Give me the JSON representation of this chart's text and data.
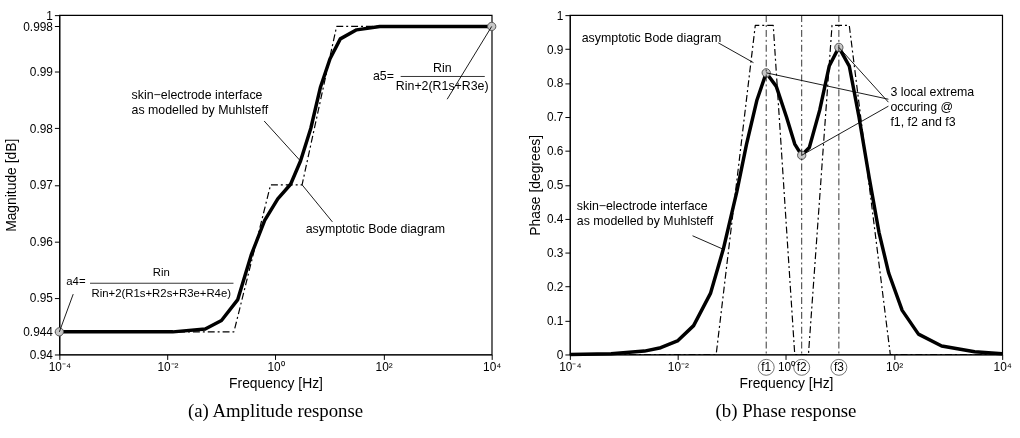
{
  "chart_data": [
    {
      "type": "line",
      "title": "(a)  Amplitude response",
      "xlabel": "Frequency [Hz]",
      "ylabel": "Magnitude [dB]",
      "log": "x",
      "grid": false,
      "xlim": [
        0.0001,
        10000
      ],
      "xticks": [
        {
          "value": 0.0001,
          "label": "10⁻⁴"
        },
        {
          "value": 0.01,
          "label": "10⁻²"
        },
        {
          "value": 1,
          "label": "10⁰"
        },
        {
          "value": 100,
          "label": "10²"
        },
        {
          "value": 10000,
          "label": "10⁴"
        }
      ],
      "ylim": [
        0.94,
        1
      ],
      "yticks": [
        0.94,
        0.944,
        0.95,
        0.96,
        0.97,
        0.98,
        0.99,
        0.998,
        1
      ],
      "series": [
        {
          "line_style": "dashed",
          "color": "#000000",
          "x": [
            0.0001,
            0.17,
            0.81,
            3.1,
            13.5,
            10000
          ],
          "values": [
            0.944,
            0.944,
            0.97,
            0.97,
            0.998,
            0.998
          ]
        },
        {
          "line_style": "solid",
          "color": "#000000",
          "x": [
            0.0001,
            0.001,
            0.0126,
            0.05,
            0.1,
            0.2,
            0.355,
            0.63,
            1.1,
            1.9,
            2.9,
            4.5,
            6.8,
            10.2,
            15.8,
            31.6,
            85,
            1000,
            10000
          ],
          "values": [
            0.944,
            0.944,
            0.944,
            0.9445,
            0.946,
            0.9497,
            0.9576,
            0.9637,
            0.9675,
            0.9701,
            0.9742,
            0.98,
            0.9873,
            0.9923,
            0.9958,
            0.9974,
            0.998,
            0.998,
            0.998
          ]
        },
        {
          "type": "scatter",
          "marker": "circle",
          "color": "#c8c8c8",
          "x": [
            0.0001,
            10000
          ],
          "values": [
            0.944,
            0.998
          ]
        }
      ],
      "annotations": [
        {
          "text": "skin−electrode interface\nas modelled by Muhlsteff",
          "x": 2.9,
          "y": 0.9742
        },
        {
          "text": "asymptotic Bode diagram",
          "x": 3.1,
          "y": 0.97
        },
        "a5=",
        "Rin",
        {
          "text": "Rin+2(R1s+R3e)",
          "x": 10000,
          "y": 0.998
        },
        {
          "text": "a4=",
          "x": 0.0001,
          "y": 0.944
        },
        "Rin",
        "Rin+2(R1s+R2s+R3e+R4e)"
      ]
    },
    {
      "type": "line",
      "title": "(b)  Phase response",
      "xlabel": "Frequency [Hz]",
      "ylabel": "Phase [degrees]",
      "log": "x",
      "grid": false,
      "xlim": [
        0.0001,
        10000
      ],
      "xticks": [
        {
          "value": 0.0001,
          "label": "10⁻⁴"
        },
        {
          "value": 0.01,
          "label": "10⁻²"
        },
        {
          "value": 1,
          "label": "10⁰"
        },
        {
          "value": 100,
          "label": "10²"
        },
        {
          "value": 10000,
          "label": "10⁴"
        }
      ],
      "ylim": [
        0,
        1
      ],
      "yticks": [
        0,
        0.1,
        0.2,
        0.3,
        0.4,
        0.5,
        0.6,
        0.7,
        0.8,
        0.9,
        1
      ],
      "series": [
        {
          "line_style": "dashed",
          "color": "#000000",
          "x": [
            0.0001,
            0.051,
            0.27,
            0.58,
            1.45,
            2.6,
            7.1,
            14.8,
            85,
            10000
          ],
          "values": [
            0,
            0,
            0.97,
            0.97,
            0,
            0,
            0.97,
            0.97,
            0,
            0
          ]
        },
        {
          "line_style": "solid",
          "color": "#000000",
          "x": [
            0.0001,
            0.00058,
            0.0024,
            0.0048,
            0.0098,
            0.0195,
            0.04,
            0.069,
            0.123,
            0.186,
            0.29,
            0.43,
            0.66,
            1.02,
            1.45,
            1.95,
            2.7,
            4.2,
            6.3,
            9.5,
            14.8,
            22.4,
            34.7,
            52.5,
            79.4,
            141,
            282,
            759,
            3090,
            10000
          ],
          "values": [
            0,
            0.002,
            0.01,
            0.02,
            0.04,
            0.085,
            0.18,
            0.31,
            0.48,
            0.62,
            0.75,
            0.83,
            0.79,
            0.7,
            0.62,
            0.587,
            0.61,
            0.72,
            0.85,
            0.905,
            0.85,
            0.7,
            0.52,
            0.36,
            0.24,
            0.13,
            0.06,
            0.025,
            0.008,
            0.002
          ]
        },
        {
          "type": "scatter",
          "marker": "circle",
          "color": "#c8c8c8",
          "x": [
            0.43,
            1.95,
            9.5
          ],
          "values": [
            0.83,
            0.587,
            0.905
          ]
        }
      ],
      "ref_lines": [
        {
          "axis": "x",
          "value": 0.43,
          "label": "f1",
          "line_style": "dashed"
        },
        {
          "axis": "x",
          "value": 1.95,
          "label": "f2",
          "line_style": "dashed"
        },
        {
          "axis": "x",
          "value": 9.5,
          "label": "f3",
          "line_style": "dashed"
        }
      ],
      "annotations": [
        {
          "text": "asymptotic Bode diagram",
          "x": 0.25,
          "y": 0.86
        },
        {
          "text": "skin−electrode interface\nas modelled by Muhlsteff",
          "x": 0.069,
          "y": 0.31
        },
        {
          "text": "3 local extrema\noccuring @\nf1, f2 and f3",
          "x": 1.95,
          "y": 0.587
        }
      ]
    }
  ]
}
